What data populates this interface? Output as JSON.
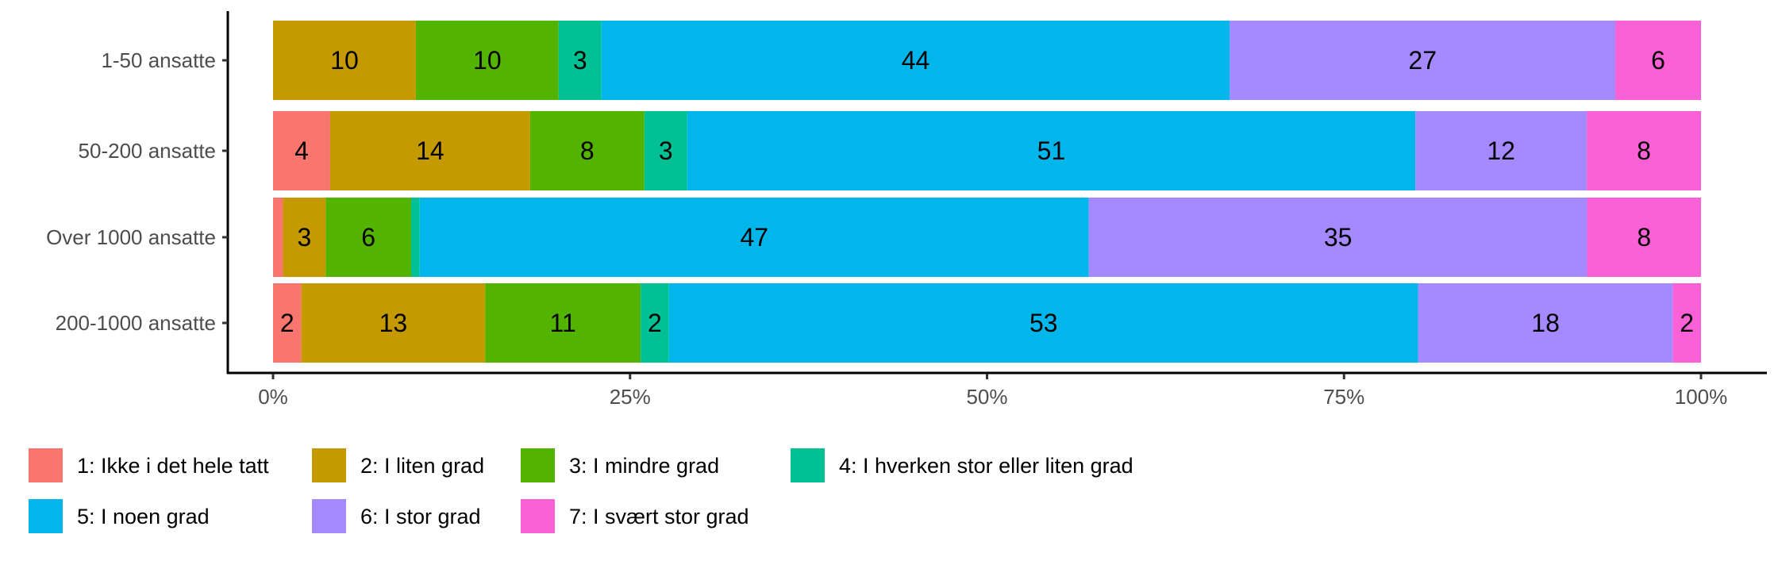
{
  "chart_data": {
    "type": "bar",
    "orientation": "horizontal",
    "stacked": "percent",
    "title": "",
    "xlabel": "",
    "ylabel": "",
    "xlim": [
      0,
      100
    ],
    "x_ticks": [
      "0%",
      "25%",
      "50%",
      "75%",
      "100%"
    ],
    "x_tick_values": [
      0,
      25,
      50,
      75,
      100
    ],
    "categories": [
      "1-50 ansatte",
      "50-200 ansatte",
      "Over 1000 ansatte",
      "200-1000 ansatte"
    ],
    "series": [
      {
        "name": "1: Ikke i det hele tatt",
        "color": "#F8766D",
        "values": [
          0,
          4,
          0.7,
          2
        ],
        "labels": [
          "",
          "4",
          "",
          "2"
        ]
      },
      {
        "name": "2: I liten grad",
        "color": "#C49A00",
        "values": [
          10,
          14,
          3,
          13
        ],
        "labels": [
          "10",
          "14",
          "3",
          "13"
        ]
      },
      {
        "name": "3: I mindre grad",
        "color": "#53B400",
        "values": [
          10,
          8,
          6,
          11
        ],
        "labels": [
          "10",
          "8",
          "6",
          "11"
        ]
      },
      {
        "name": "4: I hverken stor eller liten grad",
        "color": "#00C094",
        "values": [
          3,
          3,
          0.6,
          2
        ],
        "labels": [
          "3",
          "3",
          "",
          "2"
        ]
      },
      {
        "name": "5: I noen grad",
        "color": "#00B6EB",
        "values": [
          44,
          51,
          47,
          53
        ],
        "labels": [
          "44",
          "51",
          "47",
          "53"
        ]
      },
      {
        "name": "6: I stor grad",
        "color": "#A58AFF",
        "values": [
          27,
          12,
          35,
          18
        ],
        "labels": [
          "27",
          "12",
          "35",
          "18"
        ]
      },
      {
        "name": "7: I svært stor grad",
        "color": "#FB61D7",
        "values": [
          6,
          8,
          8,
          2
        ],
        "labels": [
          "6",
          "8",
          "8",
          "2"
        ]
      }
    ],
    "legend_position": "bottom",
    "grid": false
  }
}
